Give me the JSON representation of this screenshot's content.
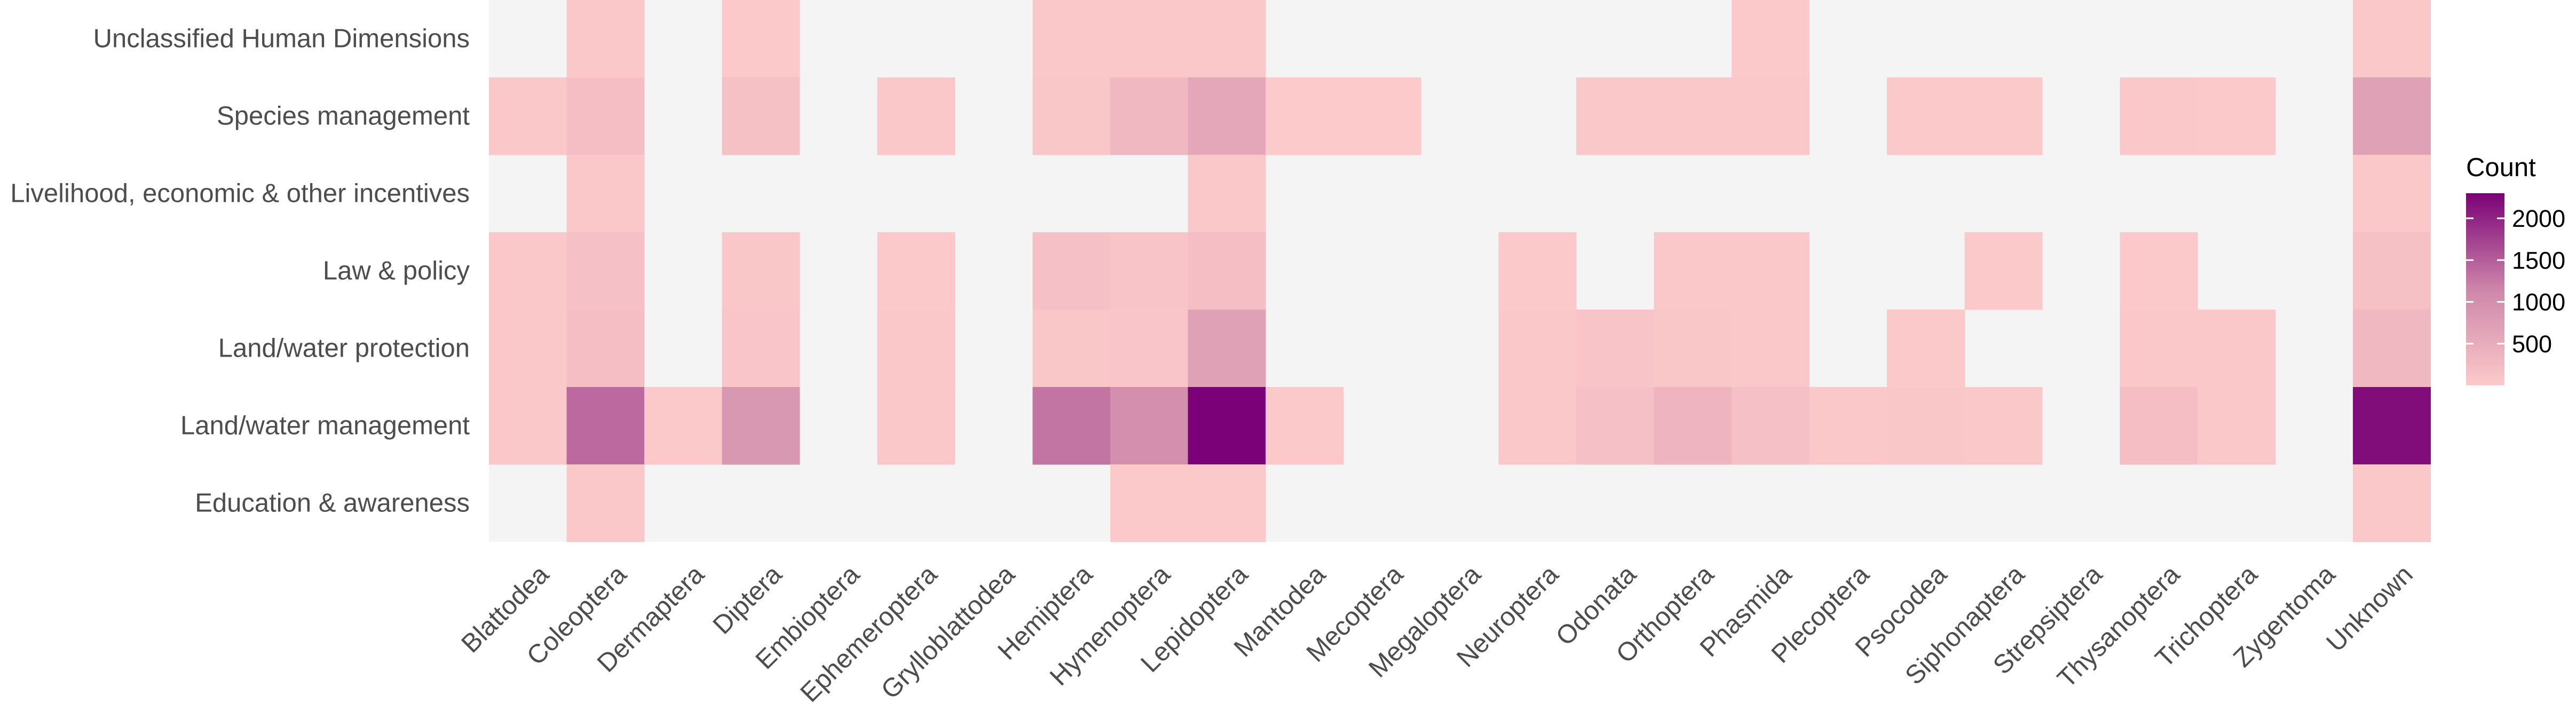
{
  "chart_data": {
    "type": "heatmap",
    "title": "",
    "xlabel": "",
    "ylabel": "",
    "x": [
      "Blattodea",
      "Coleoptera",
      "Dermaptera",
      "Diptera",
      "Embioptera",
      "Ephemeroptera",
      "Grylloblattodea",
      "Hemiptera",
      "Hymenoptera",
      "Lepidoptera",
      "Mantodea",
      "Mecoptera",
      "Megaloptera",
      "Neuroptera",
      "Odonata",
      "Orthoptera",
      "Phasmida",
      "Plecoptera",
      "Psocodea",
      "Siphonaptera",
      "Strepsiptera",
      "Thysanoptera",
      "Trichoptera",
      "Zygentoma",
      "Unknown"
    ],
    "y": [
      "Unclassified Human Dimensions",
      "Species management",
      "Livelihood, economic & other incentives",
      "Law & policy",
      "Land/water protection",
      "Land/water management",
      "Education & awareness"
    ],
    "values": [
      [
        null,
        30,
        null,
        20,
        null,
        null,
        null,
        30,
        30,
        30,
        null,
        null,
        null,
        null,
        null,
        null,
        10,
        null,
        null,
        null,
        null,
        null,
        null,
        null,
        40
      ],
      [
        30,
        200,
        null,
        160,
        null,
        30,
        null,
        50,
        300,
        600,
        5,
        5,
        null,
        null,
        30,
        30,
        30,
        null,
        10,
        10,
        null,
        30,
        10,
        null,
        700
      ],
      [
        null,
        30,
        null,
        null,
        null,
        null,
        null,
        null,
        null,
        30,
        null,
        null,
        null,
        null,
        null,
        null,
        null,
        null,
        null,
        null,
        null,
        null,
        null,
        null,
        30
      ],
      [
        30,
        150,
        null,
        60,
        null,
        10,
        null,
        150,
        100,
        200,
        null,
        null,
        null,
        10,
        null,
        30,
        30,
        null,
        null,
        10,
        null,
        10,
        null,
        null,
        160
      ],
      [
        30,
        200,
        null,
        80,
        null,
        40,
        null,
        50,
        80,
        700,
        null,
        null,
        null,
        30,
        100,
        60,
        30,
        null,
        10,
        null,
        null,
        40,
        30,
        null,
        300
      ],
      [
        40,
        1400,
        10,
        850,
        null,
        30,
        null,
        1300,
        1000,
        2300,
        10,
        null,
        null,
        30,
        150,
        350,
        150,
        30,
        50,
        30,
        null,
        200,
        30,
        null,
        2200
      ],
      [
        null,
        30,
        null,
        null,
        null,
        null,
        null,
        null,
        20,
        20,
        null,
        null,
        null,
        null,
        null,
        null,
        null,
        null,
        null,
        null,
        null,
        null,
        null,
        null,
        30
      ]
    ],
    "legend": {
      "title": "Count",
      "ticks": [
        500,
        1000,
        1500,
        2000
      ],
      "range": [
        1,
        2300
      ],
      "position": "right",
      "colors": {
        "low": "#fccaca",
        "mid": "#cd86a9",
        "high": "#7a0177"
      }
    },
    "missing_color": "#f4f4f4",
    "grid": false
  }
}
